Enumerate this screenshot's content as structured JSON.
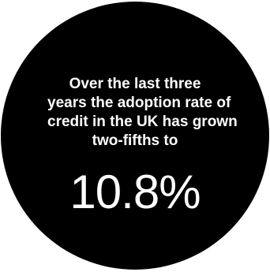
{
  "statement": {
    "lines": [
      "Over the last three",
      "years the adoption rate of",
      "credit in the UK has grown",
      "two-fifths to"
    ]
  },
  "figure": {
    "value": "10.8%"
  },
  "colors": {
    "circle": "#000000",
    "text": "#ffffff",
    "background": "#ffffff"
  }
}
